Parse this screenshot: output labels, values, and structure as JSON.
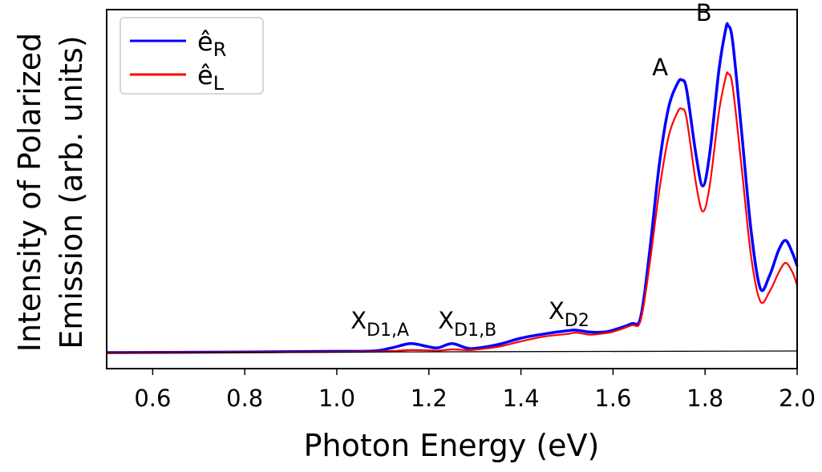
{
  "chart_data": {
    "type": "line",
    "title": "",
    "xlabel": "Photon Energy (eV)",
    "ylabel_line1": "Intensity of Polarized",
    "ylabel_line2": "Emission (arb. units)",
    "xlim": [
      0.5,
      2.0
    ],
    "ylim": [
      -0.05,
      1.07
    ],
    "xticks": [
      "0.6",
      "0.8",
      "1.0",
      "1.2",
      "1.4",
      "1.6",
      "1.8",
      "2.0"
    ],
    "xtick_values": [
      0.6,
      0.8,
      1.0,
      1.2,
      1.4,
      1.6,
      1.8,
      2.0
    ],
    "yticks": [],
    "grid": false,
    "legend_position": "top-left",
    "series": [
      {
        "name": "ê_R",
        "name_main": "ê",
        "name_sub": "R",
        "color": "#0000ff",
        "x": [
          0.5,
          0.8,
          1.0,
          1.08,
          1.12,
          1.16,
          1.2,
          1.22,
          1.25,
          1.28,
          1.3,
          1.35,
          1.4,
          1.45,
          1.5,
          1.52,
          1.55,
          1.58,
          1.6,
          1.64,
          1.66,
          1.68,
          1.7,
          1.72,
          1.74,
          1.75,
          1.76,
          1.78,
          1.795,
          1.81,
          1.83,
          1.845,
          1.85,
          1.86,
          1.88,
          1.9,
          1.92,
          1.94,
          1.96,
          1.975,
          1.99,
          2.0
        ],
        "y": [
          0.0,
          0.002,
          0.004,
          0.005,
          0.015,
          0.028,
          0.018,
          0.015,
          0.028,
          0.015,
          0.013,
          0.025,
          0.045,
          0.058,
          0.068,
          0.07,
          0.064,
          0.064,
          0.07,
          0.09,
          0.11,
          0.32,
          0.58,
          0.76,
          0.84,
          0.85,
          0.82,
          0.62,
          0.52,
          0.62,
          0.88,
          1.01,
          1.02,
          0.97,
          0.68,
          0.38,
          0.2,
          0.24,
          0.32,
          0.35,
          0.31,
          0.27
        ]
      },
      {
        "name": "ê_L",
        "name_main": "ê",
        "name_sub": "L",
        "color": "#ff0000",
        "x": [
          0.5,
          0.8,
          1.0,
          1.08,
          1.12,
          1.16,
          1.2,
          1.22,
          1.25,
          1.28,
          1.3,
          1.35,
          1.4,
          1.45,
          1.5,
          1.52,
          1.55,
          1.58,
          1.6,
          1.64,
          1.66,
          1.68,
          1.7,
          1.72,
          1.74,
          1.75,
          1.76,
          1.78,
          1.795,
          1.81,
          1.83,
          1.845,
          1.85,
          1.86,
          1.88,
          1.9,
          1.92,
          1.94,
          1.96,
          1.975,
          1.99,
          2.0
        ],
        "y": [
          0.0,
          0.001,
          0.002,
          0.003,
          0.005,
          0.008,
          0.007,
          0.006,
          0.01,
          0.008,
          0.009,
          0.018,
          0.035,
          0.05,
          0.058,
          0.062,
          0.056,
          0.06,
          0.065,
          0.085,
          0.1,
          0.28,
          0.5,
          0.67,
          0.75,
          0.76,
          0.73,
          0.53,
          0.44,
          0.52,
          0.75,
          0.86,
          0.87,
          0.83,
          0.57,
          0.3,
          0.16,
          0.19,
          0.25,
          0.28,
          0.25,
          0.21
        ]
      },
      {
        "name": "",
        "color": "#000000",
        "x": [
          0.5,
          2.0
        ],
        "y": [
          0.0,
          0.005
        ]
      }
    ],
    "annotations": [
      {
        "main": "X",
        "sub": "D1,A",
        "x": 1.03,
        "y": 0.075
      },
      {
        "main": "X",
        "sub": "D1,B",
        "x": 1.22,
        "y": 0.075
      },
      {
        "main": "X",
        "sub": "D2",
        "x": 1.46,
        "y": 0.105
      },
      {
        "main": "A",
        "sub": "",
        "x": 1.685,
        "y": 0.865
      },
      {
        "main": "B",
        "sub": "",
        "x": 1.78,
        "y": 1.035
      }
    ]
  }
}
